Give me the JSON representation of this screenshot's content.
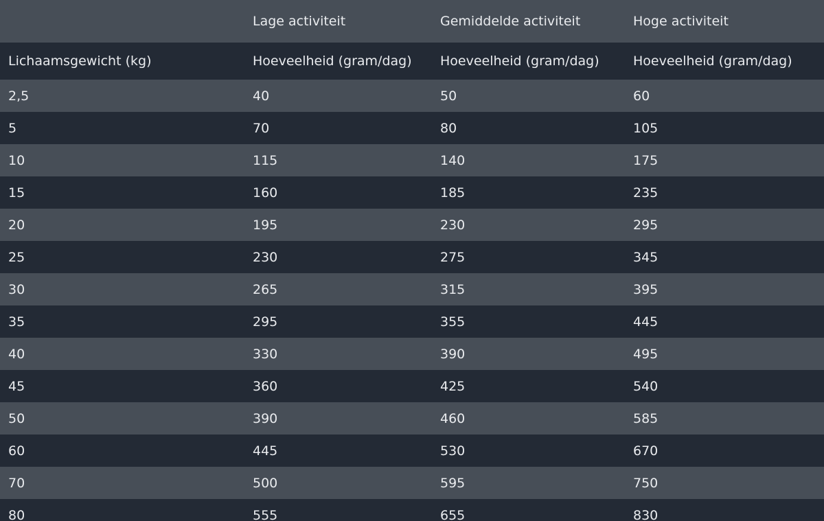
{
  "table": {
    "top_headers": [
      "Lage activiteit",
      "Gemiddelde activiteit",
      "Hoge activiteit"
    ],
    "sub_headers": [
      "Lichaamsgewicht (kg)",
      "Hoeveelheid (gram/dag)",
      "Hoeveelheid (gram/dag)",
      "Hoeveelheid (gram/dag)"
    ],
    "rows": [
      [
        "2,5",
        "40",
        "50",
        "60"
      ],
      [
        "5",
        "70",
        "80",
        "105"
      ],
      [
        "10",
        "115",
        "140",
        "175"
      ],
      [
        "15",
        "160",
        "185",
        "235"
      ],
      [
        "20",
        "195",
        "230",
        "295"
      ],
      [
        "25",
        "230",
        "275",
        "345"
      ],
      [
        "30",
        "265",
        "315",
        "395"
      ],
      [
        "35",
        "295",
        "355",
        "445"
      ],
      [
        "40",
        "330",
        "390",
        "495"
      ],
      [
        "45",
        "360",
        "425",
        "540"
      ],
      [
        "50",
        "390",
        "460",
        "585"
      ],
      [
        "60",
        "445",
        "530",
        "670"
      ],
      [
        "70",
        "500",
        "595",
        "750"
      ],
      [
        "80",
        "555",
        "655",
        "830"
      ]
    ]
  }
}
